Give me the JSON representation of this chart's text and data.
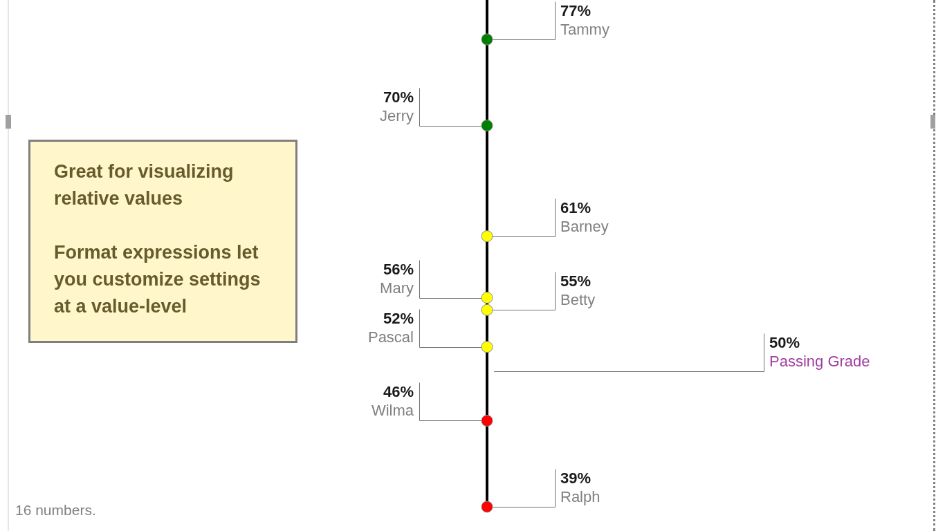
{
  "chart_data": {
    "type": "other",
    "categories": [
      "Tammy",
      "Jerry",
      "Barney",
      "Mary",
      "Betty",
      "Pascal",
      "Passing Grade",
      "Wilma",
      "Ralph"
    ],
    "series": [
      {
        "type": "scatter",
        "values": [
          77,
          70,
          61,
          56,
          55,
          52,
          null,
          46,
          39
        ],
        "value_labels": [
          "77%",
          "70%",
          "61%",
          "56%",
          "55%",
          "52%",
          null,
          "46%",
          "39%"
        ],
        "colors": [
          "#008000",
          "#008000",
          "#ffff00",
          "#ffff00",
          "#ffff00",
          "#ffff00",
          null,
          "#ff0000",
          "#ff0000"
        ]
      },
      {
        "color": "#a03ca0",
        "values": [
          null,
          null,
          null,
          null,
          null,
          null,
          50,
          null,
          null
        ],
        "value_labels": [
          null,
          null,
          null,
          null,
          null,
          null,
          "50%",
          null,
          null
        ]
      }
    ],
    "annotations": [
      "Great for visualizing relative values",
      "Format expressions let you customize settings at a value-level",
      "16 numbers."
    ]
  }
}
